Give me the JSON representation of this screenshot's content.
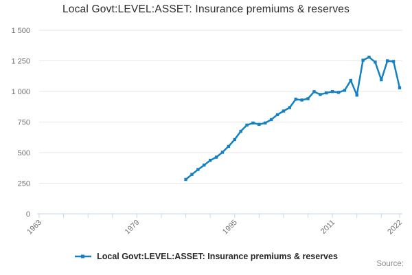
{
  "header": {
    "title": "Local Govt:LEVEL:ASSET: Insurance premiums & reserves"
  },
  "legend": {
    "label": "Local Govt:LEVEL:ASSET: Insurance premiums & reserves"
  },
  "footer": {
    "source_label": "Source:"
  },
  "colors": {
    "line": "#1481c3",
    "grid": "#e6e6e6",
    "axis": "#c9d6e8",
    "tick_label": "#6f6f6f",
    "title_text": "#2b2b2b",
    "legend_text": "#262626",
    "source_text": "#8a8a8a",
    "background": "#ffffff"
  },
  "chart_data": {
    "type": "line",
    "title": "Local Govt:LEVEL:ASSET: Insurance premiums & reserves",
    "xlabel": "",
    "ylabel": "",
    "xlim": [
      1963,
      2022
    ],
    "ylim": [
      0,
      1500
    ],
    "grid": true,
    "legend_position": "bottom",
    "x_axis": {
      "ticks": [
        1963,
        1967,
        1971,
        1975,
        1979,
        1983,
        1987,
        1991,
        1995,
        1999,
        2003,
        2007,
        2011,
        2015,
        2019,
        2022
      ],
      "labeled_ticks": [
        1963,
        1979,
        1995,
        2011,
        2022
      ]
    },
    "y_axis": {
      "ticks": [
        0,
        250,
        500,
        750,
        1000,
        1250,
        1500
      ],
      "tick_labels": [
        "0",
        "250",
        "500",
        "750",
        "1 000",
        "1 250",
        "1 500"
      ]
    },
    "series": [
      {
        "name": "Local Govt:LEVEL:ASSET: Insurance premiums & reserves",
        "color": "#1481c3",
        "x": [
          1987,
          1988,
          1989,
          1990,
          1991,
          1992,
          1993,
          1994,
          1995,
          1996,
          1997,
          1998,
          1999,
          2000,
          2001,
          2002,
          2003,
          2004,
          2005,
          2006,
          2007,
          2008,
          2009,
          2010,
          2011,
          2012,
          2013,
          2014,
          2015,
          2016,
          2017,
          2018,
          2019,
          2020,
          2021,
          2022
        ],
        "values": [
          281,
          322,
          362,
          398,
          437,
          463,
          503,
          551,
          607,
          674,
          725,
          742,
          731,
          742,
          770,
          810,
          840,
          868,
          936,
          930,
          941,
          998,
          975,
          988,
          999,
          992,
          1009,
          1090,
          970,
          1255,
          1280,
          1240,
          1095,
          1250,
          1245,
          1030
        ]
      }
    ]
  }
}
